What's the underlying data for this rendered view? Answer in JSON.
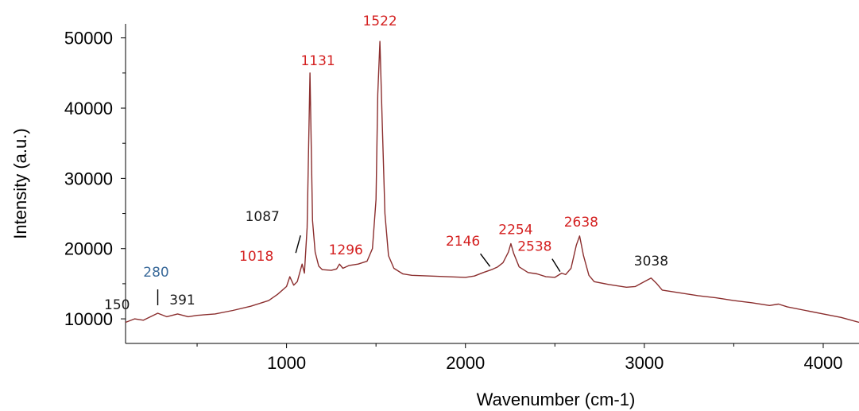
{
  "chart_data": {
    "type": "line",
    "xlabel": "Wavenumber (cm-1)",
    "ylabel": "Intensity (a.u.)",
    "xlim": [
      100,
      4200
    ],
    "ylim": [
      6500,
      52000
    ],
    "xticks": [
      1000,
      2000,
      3000,
      4000
    ],
    "xtick_labels": [
      "1000",
      "2000",
      "3000",
      "4000"
    ],
    "yticks": [
      10000,
      20000,
      30000,
      40000,
      50000
    ],
    "ytick_labels": [
      "10000",
      "20000",
      "30000",
      "40000",
      "50000"
    ],
    "grid": false,
    "line_color": "#8b2e2e",
    "series": [
      {
        "x": [
          100,
          150,
          200,
          280,
          330,
          391,
          450,
          500,
          600,
          700,
          800,
          900,
          950,
          1000,
          1018,
          1040,
          1060,
          1087,
          1100,
          1115,
          1131,
          1145,
          1160,
          1180,
          1200,
          1250,
          1280,
          1296,
          1315,
          1350,
          1400,
          1450,
          1480,
          1500,
          1510,
          1522,
          1535,
          1550,
          1570,
          1600,
          1650,
          1700,
          1800,
          1900,
          2000,
          2050,
          2100,
          2146,
          2180,
          2210,
          2240,
          2254,
          2270,
          2300,
          2350,
          2400,
          2450,
          2500,
          2538,
          2560,
          2590,
          2620,
          2638,
          2660,
          2690,
          2720,
          2800,
          2900,
          2950,
          3000,
          3038,
          3070,
          3100,
          3200,
          3300,
          3400,
          3500,
          3600,
          3700,
          3750,
          3800,
          3900,
          4000,
          4100,
          4200
        ],
        "y": [
          9500,
          10000,
          9800,
          10800,
          10300,
          10700,
          10300,
          10500,
          10700,
          11200,
          11800,
          12600,
          13500,
          14600,
          16000,
          14800,
          15300,
          17800,
          16500,
          23000,
          45000,
          24000,
          19500,
          17500,
          17000,
          16900,
          17100,
          17800,
          17200,
          17600,
          17800,
          18200,
          20000,
          27000,
          42000,
          49500,
          38000,
          25000,
          19000,
          17200,
          16400,
          16200,
          16100,
          16000,
          15900,
          16100,
          16600,
          17000,
          17400,
          18000,
          19500,
          20700,
          19300,
          17400,
          16600,
          16400,
          16000,
          15900,
          16500,
          16300,
          17200,
          20500,
          21800,
          19000,
          16200,
          15300,
          14900,
          14500,
          14600,
          15300,
          15800,
          15000,
          14100,
          13700,
          13300,
          13000,
          12600,
          12300,
          11900,
          12100,
          11700,
          11200,
          10700,
          10200,
          9500
        ]
      }
    ],
    "annotations": [
      {
        "text": "150",
        "x": 150,
        "color": "#1a1a1a"
      },
      {
        "text": "280",
        "x": 280,
        "color": "#3a6a9a"
      },
      {
        "text": "391",
        "x": 391,
        "color": "#1a1a1a"
      },
      {
        "text": "1018",
        "x": 1018,
        "color": "#d42020"
      },
      {
        "text": "1087",
        "x": 1087,
        "color": "#1a1a1a"
      },
      {
        "text": "1131",
        "x": 1131,
        "color": "#d42020"
      },
      {
        "text": "1296",
        "x": 1296,
        "color": "#d42020"
      },
      {
        "text": "1522",
        "x": 1522,
        "color": "#d42020"
      },
      {
        "text": "2146",
        "x": 2146,
        "color": "#d42020"
      },
      {
        "text": "2254",
        "x": 2254,
        "color": "#d42020"
      },
      {
        "text": "2538",
        "x": 2538,
        "color": "#d42020"
      },
      {
        "text": "2638",
        "x": 2638,
        "color": "#d42020"
      },
      {
        "text": "3038",
        "x": 3038,
        "color": "#1a1a1a"
      }
    ]
  }
}
